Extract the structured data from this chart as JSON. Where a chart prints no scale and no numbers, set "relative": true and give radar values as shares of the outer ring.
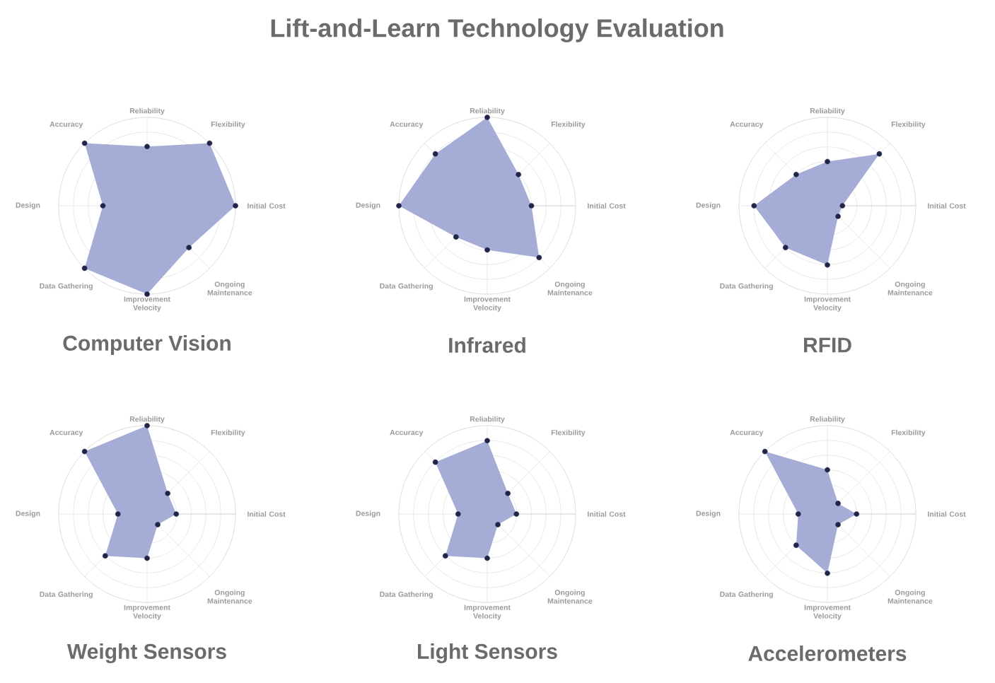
{
  "chart_data": [
    {
      "type": "radar",
      "title": "Computer Vision",
      "annotations": [
        "Lift-and-Learn Technology Evaluation"
      ],
      "relative": true,
      "marker": "circle",
      "categories": [
        "Reliability",
        "Flexibility",
        "Initial Cost",
        "Ongoing Maintenance",
        "Improvement Velocity",
        "Data Gathering",
        "Design",
        "Accuracy"
      ],
      "series": [
        {
          "color": "#a5acd6",
          "values": [
            0.67,
            1,
            1,
            0.67,
            1,
            1,
            0.5,
            1
          ]
        }
      ]
    },
    {
      "type": "radar",
      "title": "Infrared",
      "relative": true,
      "marker": "circle",
      "categories": [
        "Reliability",
        "Flexibility",
        "Initial Cost",
        "Ongoing Maintenance",
        "Improvement Velocity",
        "Data Gathering",
        "Design",
        "Accuracy"
      ],
      "series": [
        {
          "color": "#a5acd6",
          "values": [
            1,
            0.5,
            0.5,
            0.83,
            0.5,
            0.5,
            1,
            0.83
          ]
        }
      ]
    },
    {
      "type": "radar",
      "title": "RFID",
      "relative": true,
      "marker": "circle",
      "categories": [
        "Reliability",
        "Flexibility",
        "Initial Cost",
        "Ongoing Maintenance",
        "Improvement Velocity",
        "Data Gathering",
        "Design",
        "Accuracy"
      ],
      "series": [
        {
          "color": "#a5acd6",
          "values": [
            0.5,
            0.83,
            0.17,
            0.17,
            0.67,
            0.67,
            0.83,
            0.5
          ]
        }
      ]
    },
    {
      "type": "radar",
      "title": "Weight Sensors",
      "relative": true,
      "marker": "circle",
      "categories": [
        "Reliability",
        "Flexibility",
        "Initial Cost",
        "Ongoing Maintenance",
        "Improvement Velocity",
        "Data Gathering",
        "Design",
        "Accuracy"
      ],
      "series": [
        {
          "color": "#a5acd6",
          "values": [
            1,
            0.33,
            0.33,
            0.17,
            0.5,
            0.67,
            0.33,
            1
          ]
        }
      ]
    },
    {
      "type": "radar",
      "title": "Light Sensors",
      "relative": true,
      "marker": "circle",
      "categories": [
        "Reliability",
        "Flexibility",
        "Initial Cost",
        "Ongoing Maintenance",
        "Improvement Velocity",
        "Data Gathering",
        "Design",
        "Accuracy"
      ],
      "series": [
        {
          "color": "#a5acd6",
          "values": [
            0.83,
            0.33,
            0.33,
            0.17,
            0.5,
            0.67,
            0.33,
            0.83
          ]
        }
      ]
    },
    {
      "type": "radar",
      "title": "Accelerometers",
      "relative": true,
      "marker": "circle",
      "categories": [
        "Reliability",
        "Flexibility",
        "Initial Cost",
        "Ongoing Maintenance",
        "Improvement Velocity",
        "Data Gathering",
        "Design",
        "Accuracy"
      ],
      "series": [
        {
          "color": "#a5acd6",
          "values": [
            0.5,
            0.17,
            0.33,
            0.17,
            0.67,
            0.5,
            0.33,
            1
          ]
        }
      ]
    }
  ]
}
